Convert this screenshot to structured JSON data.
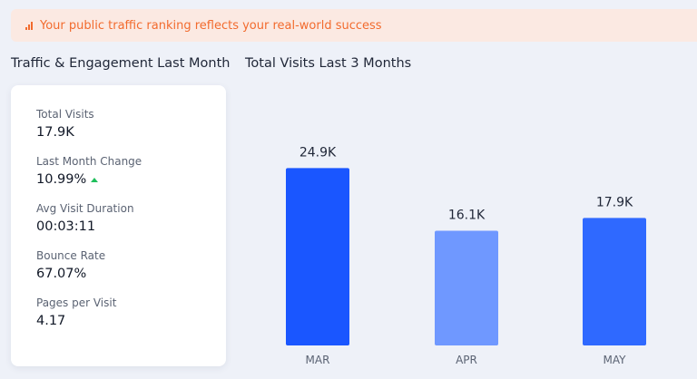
{
  "banner": {
    "icon": "signal-bars-icon",
    "text": "Your public traffic ranking reflects your real-world success",
    "color": "#f26b2e"
  },
  "left_panel": {
    "title": "Traffic & Engagement Last Month",
    "metrics": [
      {
        "label": "Total Visits",
        "value": "17.9K"
      },
      {
        "label": "Last Month Change",
        "value": "10.99%",
        "trend_icon": "trend-up-icon",
        "trend_color": "#1fbf5b"
      },
      {
        "label": "Avg Visit Duration",
        "value": "00:03:11"
      },
      {
        "label": "Bounce Rate",
        "value": "67.07%"
      },
      {
        "label": "Pages per Visit",
        "value": "4.17"
      }
    ]
  },
  "right_panel": {
    "title": "Total Visits Last 3 Months"
  },
  "chart_data": {
    "type": "bar",
    "categories": [
      "MAR",
      "APR",
      "MAY"
    ],
    "values": [
      24900,
      16100,
      17900
    ],
    "data_labels": [
      "24.9K",
      "16.1K",
      "17.9K"
    ],
    "colors": [
      "#1a56ff",
      "#6f98ff",
      "#2f69ff"
    ],
    "ylim": [
      0,
      28000
    ],
    "grid": false,
    "legend": "none"
  }
}
